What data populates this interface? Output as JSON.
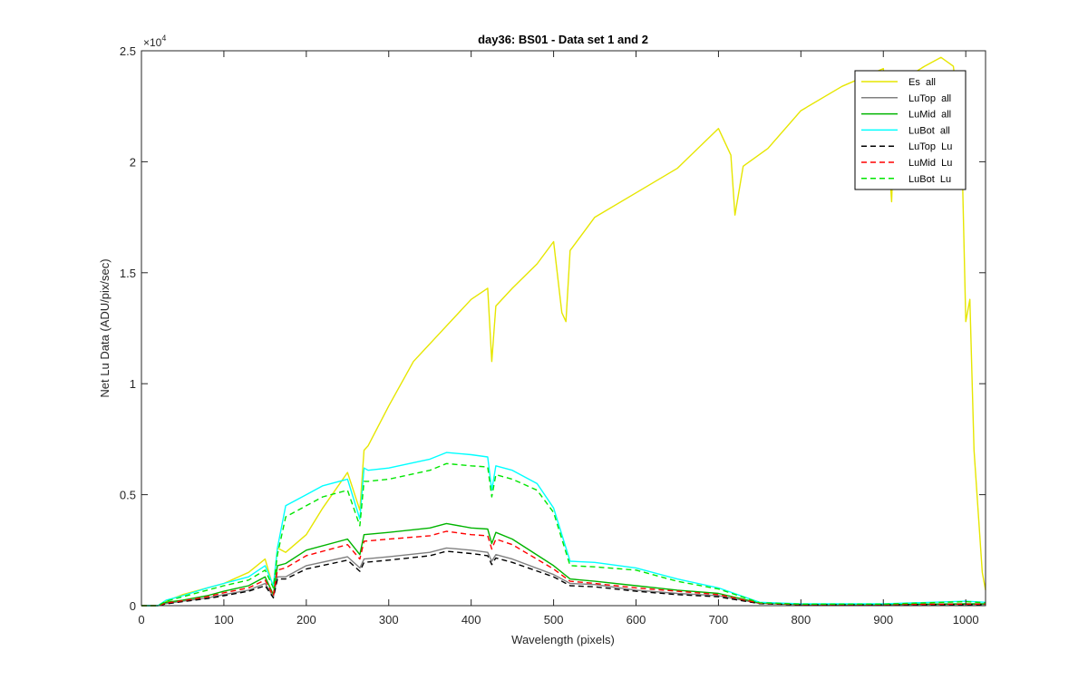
{
  "chart_data": {
    "type": "line",
    "title": "day36: BS01 - Data set 1 and 2",
    "xlabel": "Wavelength (pixels)",
    "ylabel": "Net Lu Data (ADU/pix/sec)",
    "xlim": [
      0,
      1024
    ],
    "ylim": [
      0,
      25000
    ],
    "x_ticks": [
      0,
      100,
      200,
      300,
      400,
      500,
      600,
      700,
      800,
      900,
      1000
    ],
    "x_tick_labels": [
      "0",
      "100",
      "200",
      "300",
      "400",
      "500",
      "600",
      "700",
      "800",
      "900",
      "1000"
    ],
    "y_ticks": [
      0,
      5000,
      10000,
      15000,
      20000,
      25000
    ],
    "y_tick_labels": [
      "0",
      "0.5",
      "1",
      "1.5",
      "2",
      "2.5"
    ],
    "y_exponent_label": "×10",
    "y_exponent_power": "4",
    "grid": false,
    "legend_position": "top-right",
    "series": [
      {
        "name": "Es  all",
        "color": "#e6e600",
        "dash": "solid",
        "x": [
          0,
          20,
          30,
          50,
          80,
          100,
          130,
          150,
          160,
          165,
          175,
          200,
          220,
          250,
          265,
          270,
          275,
          300,
          330,
          360,
          400,
          420,
          425,
          430,
          450,
          480,
          500,
          510,
          515,
          520,
          550,
          600,
          650,
          700,
          715,
          720,
          730,
          760,
          800,
          850,
          900,
          910,
          915,
          950,
          970,
          985,
          995,
          1000,
          1005,
          1010,
          1020,
          1024
        ],
        "y": [
          0,
          0,
          200,
          500,
          800,
          1000,
          1500,
          2100,
          800,
          2600,
          2400,
          3200,
          4400,
          6000,
          4300,
          7000,
          7200,
          9000,
          11000,
          12200,
          13800,
          14300,
          11000,
          13500,
          14300,
          15400,
          16400,
          13200,
          12800,
          16000,
          17500,
          18600,
          19700,
          21500,
          20300,
          17600,
          19800,
          20600,
          22300,
          23400,
          24200,
          18200,
          23500,
          24300,
          24700,
          24300,
          21000,
          12800,
          13800,
          7000,
          1500,
          700
        ]
      },
      {
        "name": "LuTop  all",
        "color": "#808080",
        "dash": "solid",
        "x": [
          0,
          20,
          30,
          50,
          80,
          100,
          130,
          150,
          160,
          165,
          175,
          200,
          250,
          265,
          270,
          300,
          350,
          370,
          400,
          420,
          425,
          430,
          450,
          500,
          520,
          550,
          600,
          650,
          700,
          750,
          800,
          900,
          1000,
          1024
        ],
        "y": [
          0,
          0,
          100,
          200,
          350,
          500,
          700,
          1000,
          400,
          1300,
          1300,
          1800,
          2200,
          1700,
          2100,
          2200,
          2400,
          2600,
          2500,
          2400,
          2000,
          2300,
          2100,
          1400,
          1000,
          950,
          700,
          550,
          450,
          100,
          50,
          50,
          60,
          60
        ]
      },
      {
        "name": "LuMid  all",
        "color": "#00b400",
        "dash": "solid",
        "x": [
          0,
          20,
          30,
          50,
          80,
          100,
          130,
          150,
          160,
          165,
          175,
          200,
          250,
          265,
          270,
          300,
          350,
          370,
          400,
          420,
          425,
          430,
          450,
          500,
          520,
          550,
          600,
          650,
          700,
          750,
          800,
          900,
          1000,
          1024
        ],
        "y": [
          0,
          0,
          150,
          250,
          450,
          650,
          900,
          1300,
          500,
          1800,
          1900,
          2500,
          3000,
          2300,
          3200,
          3300,
          3500,
          3700,
          3500,
          3450,
          2800,
          3300,
          3000,
          1800,
          1200,
          1100,
          900,
          700,
          550,
          120,
          60,
          60,
          80,
          80
        ]
      },
      {
        "name": "LuBot  all",
        "color": "#00ffff",
        "dash": "solid",
        "x": [
          0,
          20,
          30,
          50,
          80,
          100,
          130,
          150,
          160,
          165,
          175,
          200,
          220,
          250,
          265,
          270,
          275,
          300,
          350,
          370,
          400,
          420,
          425,
          430,
          450,
          480,
          500,
          520,
          550,
          600,
          650,
          700,
          750,
          800,
          900,
          1000,
          1024
        ],
        "y": [
          0,
          0,
          250,
          450,
          800,
          1000,
          1300,
          1800,
          900,
          2600,
          4500,
          5000,
          5400,
          5700,
          3900,
          6200,
          6100,
          6200,
          6600,
          6900,
          6800,
          6700,
          5200,
          6300,
          6100,
          5500,
          4400,
          2000,
          1950,
          1700,
          1200,
          800,
          150,
          80,
          80,
          200,
          150
        ]
      },
      {
        "name": "LuTop  Lu",
        "color": "#000000",
        "dash": "dashed",
        "x": [
          0,
          20,
          30,
          50,
          80,
          100,
          130,
          150,
          160,
          165,
          175,
          200,
          250,
          265,
          270,
          300,
          350,
          370,
          400,
          420,
          425,
          430,
          450,
          500,
          520,
          550,
          600,
          650,
          700,
          750,
          800,
          900,
          1000,
          1024
        ],
        "y": [
          0,
          0,
          80,
          180,
          320,
          450,
          650,
          900,
          350,
          1200,
          1200,
          1650,
          2050,
          1550,
          1950,
          2050,
          2250,
          2450,
          2350,
          2250,
          1850,
          2150,
          1950,
          1300,
          900,
          850,
          650,
          500,
          400,
          90,
          40,
          40,
          50,
          50
        ]
      },
      {
        "name": "LuMid  Lu",
        "color": "#ff0000",
        "dash": "dashed",
        "x": [
          0,
          20,
          30,
          50,
          80,
          100,
          130,
          150,
          160,
          165,
          175,
          200,
          250,
          265,
          270,
          300,
          350,
          370,
          400,
          420,
          425,
          430,
          450,
          500,
          520,
          550,
          600,
          650,
          700,
          750,
          800,
          900,
          1000,
          1024
        ],
        "y": [
          0,
          0,
          120,
          220,
          400,
          580,
          800,
          1150,
          450,
          1600,
          1700,
          2250,
          2750,
          2100,
          2900,
          3000,
          3150,
          3350,
          3200,
          3150,
          2550,
          3000,
          2750,
          1650,
          1100,
          1000,
          800,
          650,
          500,
          110,
          55,
          55,
          70,
          70
        ]
      },
      {
        "name": "LuBot  Lu",
        "color": "#00e600",
        "dash": "dashed",
        "x": [
          0,
          20,
          30,
          50,
          80,
          100,
          130,
          150,
          160,
          165,
          175,
          200,
          220,
          250,
          265,
          270,
          275,
          300,
          350,
          370,
          400,
          420,
          425,
          430,
          450,
          480,
          500,
          520,
          550,
          600,
          650,
          700,
          750,
          800,
          900,
          1000,
          1024
        ],
        "y": [
          0,
          0,
          200,
          400,
          700,
          900,
          1150,
          1600,
          800,
          2300,
          4000,
          4500,
          4900,
          5200,
          3600,
          5600,
          5600,
          5700,
          6100,
          6400,
          6300,
          6250,
          4900,
          5900,
          5700,
          5200,
          4200,
          1800,
          1750,
          1600,
          1100,
          750,
          130,
          70,
          70,
          180,
          130
        ]
      }
    ]
  }
}
